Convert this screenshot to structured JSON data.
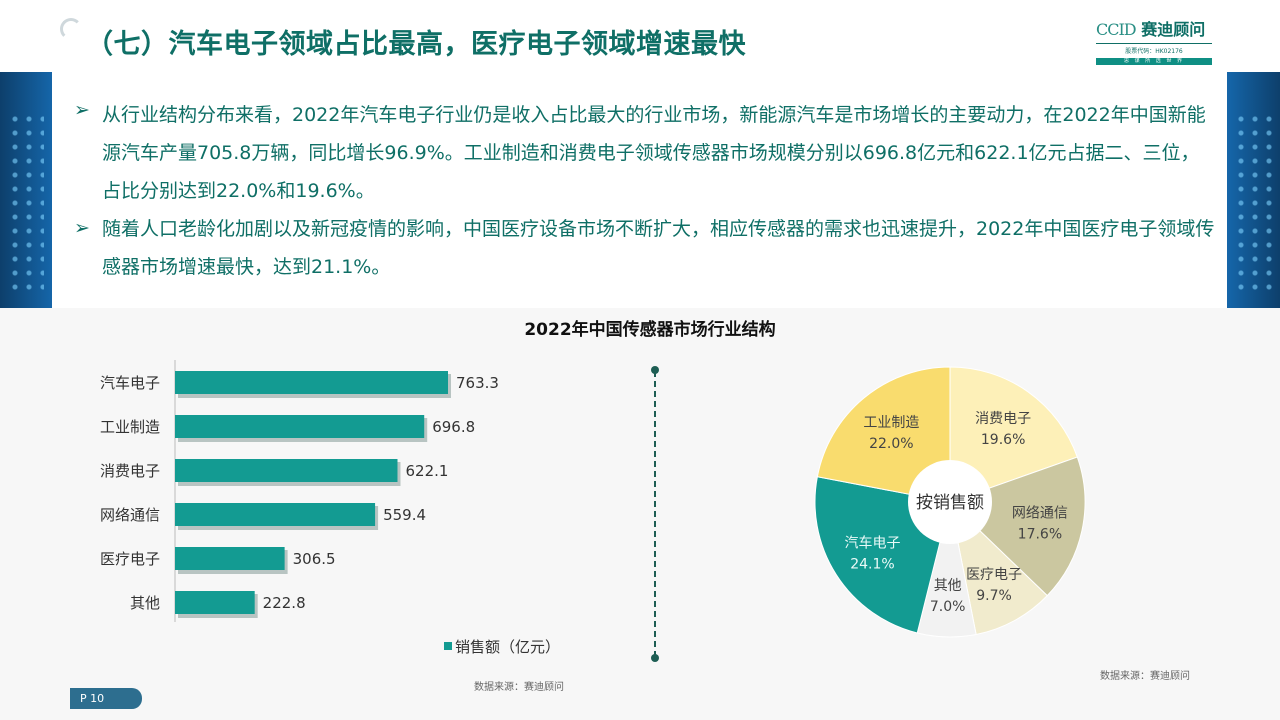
{
  "header": {
    "title": "（七）汽车电子领域占比最高，医疗电子领域增速最快",
    "logo_latin": "CCID",
    "logo_name": "赛迪顾问",
    "logo_code": "股票代码：HK02176",
    "logo_slogan": "思 谋 所 选 世 界"
  },
  "text": {
    "bullet_icon": "arrow-bullet-icon",
    "bullets": [
      "从行业结构分布来看，2022年汽车电子行业仍是收入占比最大的行业市场，新能源汽车是市场增长的主要动力，在2022年中国新能源汽车产量705.8万辆，同比增长96.9%。工业制造和消费电子领域传感器市场规模分别以696.8亿元和622.1亿元占据二、三位，占比分别达到22.0%和19.6%。",
      "随着人口老龄化加剧以及新冠疫情的影响，中国医疗设备市场不断扩大，相应传感器的需求也迅速提升，2022年中国医疗电子领域传感器市场增速最快，达到21.1%。"
    ]
  },
  "chart_title": "2022年中国传感器市场行业结构",
  "chart_data": [
    {
      "type": "bar",
      "orientation": "horizontal",
      "categories": [
        "汽车电子",
        "工业制造",
        "消费电子",
        "网络通信",
        "医疗电子",
        "其他"
      ],
      "series": [
        {
          "name": "销售额（亿元）",
          "values": [
            763.3,
            696.8,
            622.1,
            559.4,
            306.5,
            222.8
          ]
        }
      ],
      "value_labels": [
        "763.3",
        "696.8",
        "622.1",
        "559.4",
        "306.5",
        "222.8"
      ],
      "legend": "bottom",
      "grid": false,
      "source": "数据来源：赛迪顾问"
    },
    {
      "type": "pie",
      "donut": true,
      "center_label": "按销售额",
      "slices": [
        {
          "name": "消费电子",
          "value": 19.6,
          "label": "19.6%",
          "color": "#fdf0b8"
        },
        {
          "name": "网络通信",
          "value": 17.6,
          "label": "17.6%",
          "color": "#cbc7a0"
        },
        {
          "name": "医疗电子",
          "value": 9.7,
          "label": "9.7%",
          "color": "#f1ebcd"
        },
        {
          "name": "其他",
          "value": 7.0,
          "label": "7.0%",
          "color": "#f2f2f2"
        },
        {
          "name": "汽车电子",
          "value": 24.1,
          "label": "24.1%",
          "color": "#139b92"
        },
        {
          "name": "工业制造",
          "value": 22.0,
          "label": "22.0%",
          "color": "#f9dc6e"
        }
      ],
      "source": "数据来源：赛迪顾问"
    }
  ],
  "colors": {
    "teal": "#139b92",
    "title": "#0f6f66"
  },
  "page_number": "P 10"
}
